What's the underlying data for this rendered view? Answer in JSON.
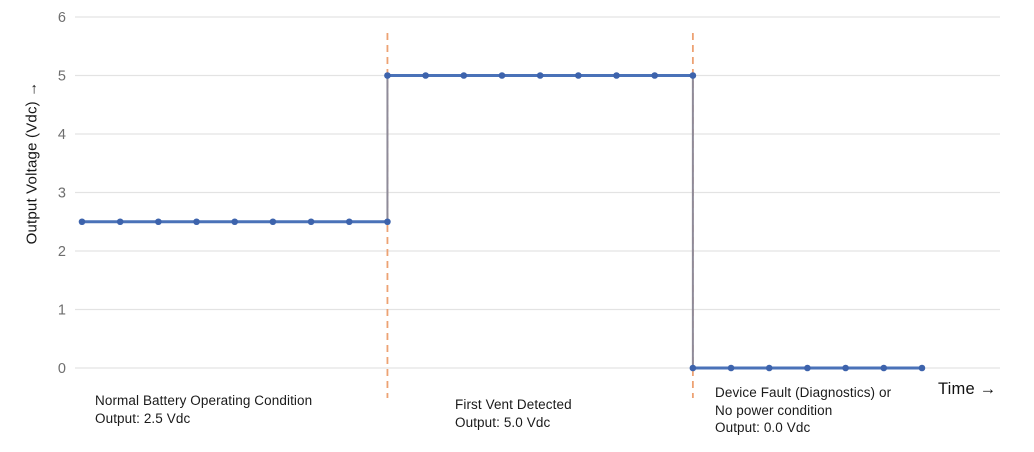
{
  "chart_data": {
    "type": "line",
    "subtype": "step",
    "title": "",
    "ylabel": "Output Voltage (Vdc)",
    "ylabel_display": "Output Voltage (Vdc) →",
    "xlabel": "Time",
    "xlabel_display": "Time →",
    "ylim": [
      0,
      6
    ],
    "xlim": [
      0,
      24
    ],
    "yticks": [
      6,
      5,
      4,
      3,
      2,
      1,
      0
    ],
    "grid": "horizontal-only",
    "legend": "none",
    "series": [
      {
        "name": "Output Voltage (Vdc)",
        "x": [
          0,
          1,
          2,
          3,
          4,
          5,
          6,
          7,
          8,
          8,
          9,
          10,
          11,
          12,
          13,
          14,
          15,
          16,
          16,
          17,
          18,
          19,
          20,
          21,
          22
        ],
        "y": [
          2.5,
          2.5,
          2.5,
          2.5,
          2.5,
          2.5,
          2.5,
          2.5,
          2.5,
          5,
          5,
          5,
          5,
          5,
          5,
          5,
          5,
          5,
          0,
          0,
          0,
          0,
          0,
          0,
          0
        ]
      }
    ],
    "segments": [
      {
        "value": 2.5,
        "t_start": 0,
        "t_end": 8,
        "label": "Normal Battery Operating Condition",
        "output": "2.5 Vdc"
      },
      {
        "value": 5.0,
        "t_start": 8,
        "t_end": 16,
        "label": "First Vent Detected",
        "output": "5.0 Vdc"
      },
      {
        "value": 0.0,
        "t_start": 16,
        "t_end": 22,
        "label": "Device Fault (Diagnostics) or No power condition",
        "output": "0.0 Vdc"
      }
    ],
    "dividers": {
      "style": "dashed",
      "t_positions": [
        8,
        16
      ]
    },
    "phase_labels": [
      {
        "lines": [
          "Normal Battery Operating Condition",
          "Output: 2.5 Vdc"
        ]
      },
      {
        "lines": [
          "First Vent Detected",
          "Output: 5.0 Vdc"
        ]
      },
      {
        "lines": [
          "Device Fault (Diagnostics) or",
          "No power condition",
          "Output: 0.0 Vdc"
        ]
      }
    ],
    "colors": {
      "line": "#4A72B8",
      "marker": "#3D63AC",
      "step_vertical": "#8F8B99",
      "divider": "#EDA273",
      "grid": "#E3E3E3",
      "tick_text": "#6E6E6E",
      "label_text": "#1A1A1A"
    }
  }
}
